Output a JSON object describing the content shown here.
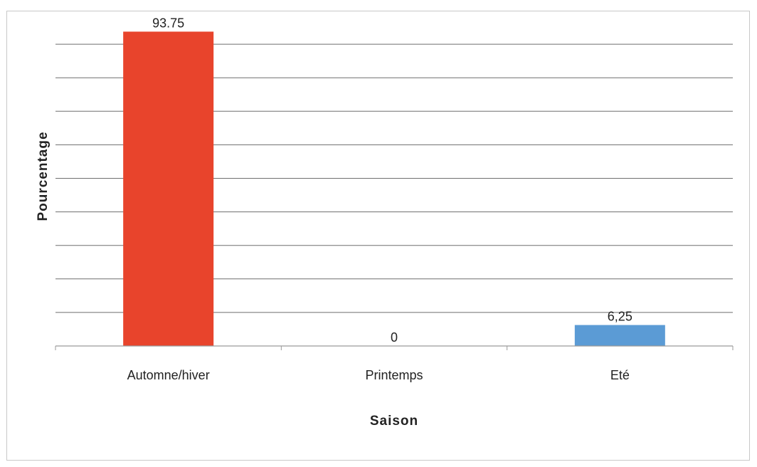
{
  "chart_data": {
    "type": "bar",
    "title": "",
    "xlabel": "Saison",
    "ylabel": "Pourcentage",
    "categories": [
      "Automne/hiver",
      "Printemps",
      "Eté"
    ],
    "values": [
      93.75,
      0,
      6.25
    ],
    "data_labels": [
      "93.75",
      "0",
      "6,25"
    ],
    "colors": [
      "#e8442c",
      "#e8442c",
      "#5b9bd5"
    ],
    "ylim": [
      0,
      100
    ],
    "grid": true,
    "legend": "none"
  }
}
